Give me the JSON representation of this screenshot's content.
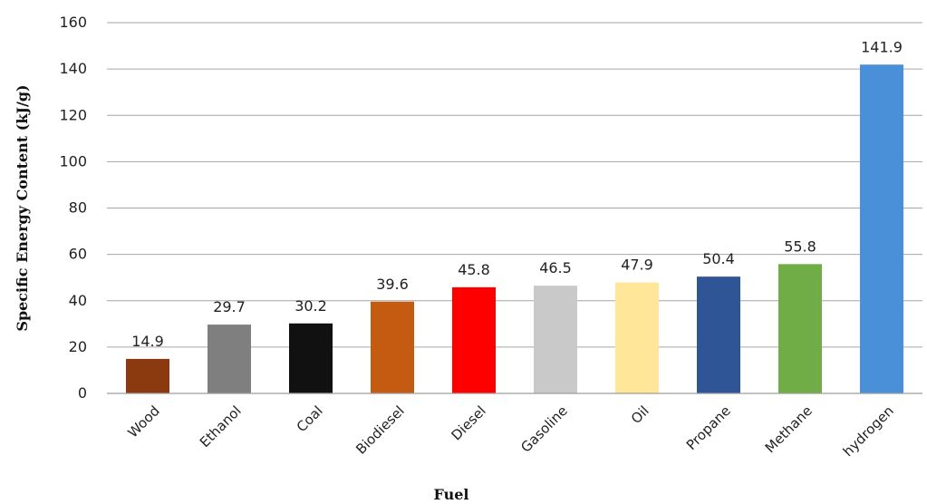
{
  "chart_data": {
    "type": "bar",
    "categories": [
      "Wood",
      "Ethanol",
      "Coal",
      "Biodiesel",
      "Diesel",
      "Gasoline",
      "Oil",
      "Propane",
      "Methane",
      "hydrogen"
    ],
    "values": [
      14.9,
      29.7,
      30.2,
      39.6,
      45.8,
      46.5,
      47.9,
      50.4,
      55.8,
      141.9
    ],
    "data_labels": [
      "14.9",
      "29.7",
      "30.2",
      "39.6",
      "45.8",
      "46.5",
      "47.9",
      "50.4",
      "55.8",
      "141.9"
    ],
    "colors": [
      "#8b3a0f",
      "#7f7f7f",
      "#111111",
      "#c55a11",
      "#ff0000",
      "#c9c9c9",
      "#ffe699",
      "#2f5597",
      "#70ad47",
      "#4a90d9"
    ],
    "xlabel": "Fuel",
    "ylabel": "Specific Energy Content (kJ/g)",
    "ylim": [
      0,
      160
    ],
    "yticks": [
      0,
      20,
      40,
      60,
      80,
      100,
      120,
      140,
      160
    ],
    "grid": true,
    "legend": "none"
  }
}
